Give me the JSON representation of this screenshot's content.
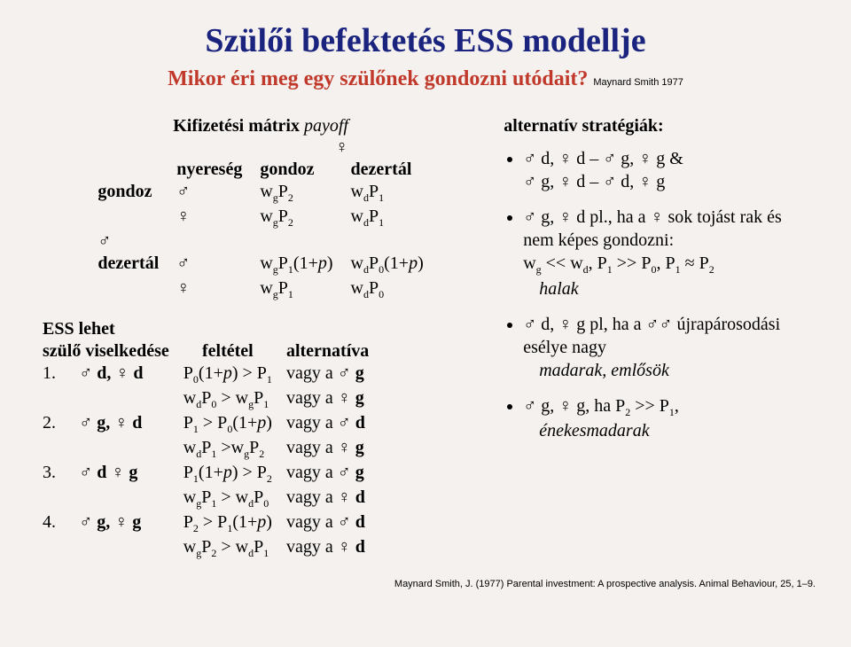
{
  "title": "Szülői befektetés ESS modellje",
  "subtitle": "Mikor éri meg egy szülőnek gondozni utódait?",
  "top_citation": "Maynard Smith 1977",
  "matrix": {
    "title": "Kifizetési mátrix",
    "title_italic": "payoff",
    "row_header_female": "♀",
    "col_header_male": "♂",
    "labels": {
      "nyereseg": "nyereség",
      "gondoz": "gondoz",
      "dezertal": "dezertál"
    },
    "cells": {
      "gg_m": "w_gP_2",
      "gg_f": "w_gP_2",
      "gd_m": "w_dP_1",
      "gd_f": "w_dP_1",
      "dg_m": "w_gP_1(1+p)",
      "dg_f": "w_gP_1",
      "dd_m": "w_dP_0(1+p)",
      "dd_f": "w_dP_0"
    }
  },
  "ess": {
    "heading1": "ESS lehet",
    "heading2": "szülő viselkedése",
    "col_feltetel": "feltétel",
    "col_alternativa": "alternatíva",
    "rows": [
      {
        "n": "1.",
        "state": "♂ d, ♀ d",
        "c1": "P_0(1+p) > P_1",
        "a1": "vagy a ♂ g",
        "c2": "w_dP_0 > w_gP_1",
        "a2": "vagy a ♀ g"
      },
      {
        "n": "2.",
        "state": "♂ g, ♀ d",
        "c1": "P_1 > P_0(1+p)",
        "a1": "vagy a ♂ d",
        "c2": "w_dP_1 >w_gP_2",
        "a2": "vagy a ♀ g"
      },
      {
        "n": "3.",
        "state": "♂ d ♀ g",
        "c1": "P_1(1+p) > P_2",
        "a1": "vagy a ♂ g",
        "c2": "w_gP_1 > w_dP_0",
        "a2": "vagy a ♀ d"
      },
      {
        "n": "4.",
        "state": "♂ g, ♀ g",
        "c1": "P_2 > P_1(1+p)",
        "a1": "vagy a ♂ d",
        "c2": "w_gP_2 > w_dP_1",
        "a2": "vagy a ♀ d"
      }
    ]
  },
  "right": {
    "heading": "alternatív stratégiák:",
    "bullet1_line1": "♂ d, ♀ d – ♂ g, ♀ g &",
    "bullet1_line2": "♂ g, ♀ d – ♂ d, ♀ g",
    "bullet2_line1": "♂ g, ♀ d pl., ha a ♀ sok tojást rak és nem képes gondozni:",
    "bullet2_line2": "w_g << w_d, P_1 >> P_0, P_1 ≈ P_2",
    "bullet2_italic": "halak",
    "bullet3_line1": "♂ d, ♀ g pl, ha a ♂♂ újrapárosodási esélye nagy",
    "bullet3_italic": "madarak, emlősök",
    "bullet4_line1": "♂ g, ♀ g, ha P_2 >> P_1,",
    "bullet4_italic": "énekesmadarak"
  },
  "bottom_citation": "Maynard Smith, J. (1977) Parental investment: A prospective analysis. Animal Behaviour, 25, 1–9."
}
